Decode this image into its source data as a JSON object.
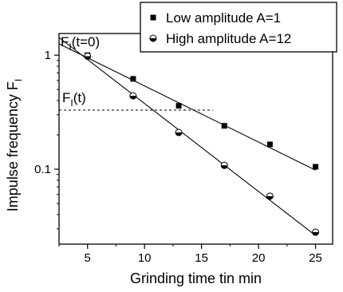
{
  "chart_data": {
    "type": "scatter",
    "xlabel": "Grinding time tin min",
    "ylabel": "Impulse frequency F",
    "ylabel_sub": "I",
    "yscale": "log",
    "xlim": [
      2.5,
      26.5
    ],
    "ylim": [
      0.022,
      1.55
    ],
    "xticks": [
      5,
      10,
      15,
      20,
      25
    ],
    "yticks": [
      0.1,
      1
    ],
    "ytick_labels": [
      "0.1",
      "1"
    ],
    "grid": false,
    "legend_position": "top-right",
    "series": [
      {
        "name": "Low amplitude A=1",
        "marker": "filled-square",
        "x": [
          5,
          9,
          13,
          17,
          21,
          25
        ],
        "y": [
          1.0,
          0.62,
          0.36,
          0.24,
          0.165,
          0.105
        ],
        "fit_line": {
          "x": [
            2.5,
            25
          ],
          "y": [
            1.26,
            0.098
          ]
        }
      },
      {
        "name": "High amplitude A=12",
        "marker": "half-filled-circle",
        "x": [
          5,
          9,
          13,
          17,
          21,
          25
        ],
        "y": [
          0.98,
          0.44,
          0.21,
          0.108,
          0.058,
          0.028
        ],
        "fit_line": {
          "x": [
            2.5,
            25
          ],
          "y": [
            1.43,
            0.0262
          ]
        }
      }
    ],
    "annotations": [
      {
        "text": "F",
        "sub": "I",
        "tail": "(t=0)"
      },
      {
        "text": "F",
        "sub": "I",
        "tail": "(t)"
      }
    ],
    "reference_line": {
      "style": "dashed",
      "y": 0.33,
      "x": [
        2.5,
        16
      ]
    }
  }
}
